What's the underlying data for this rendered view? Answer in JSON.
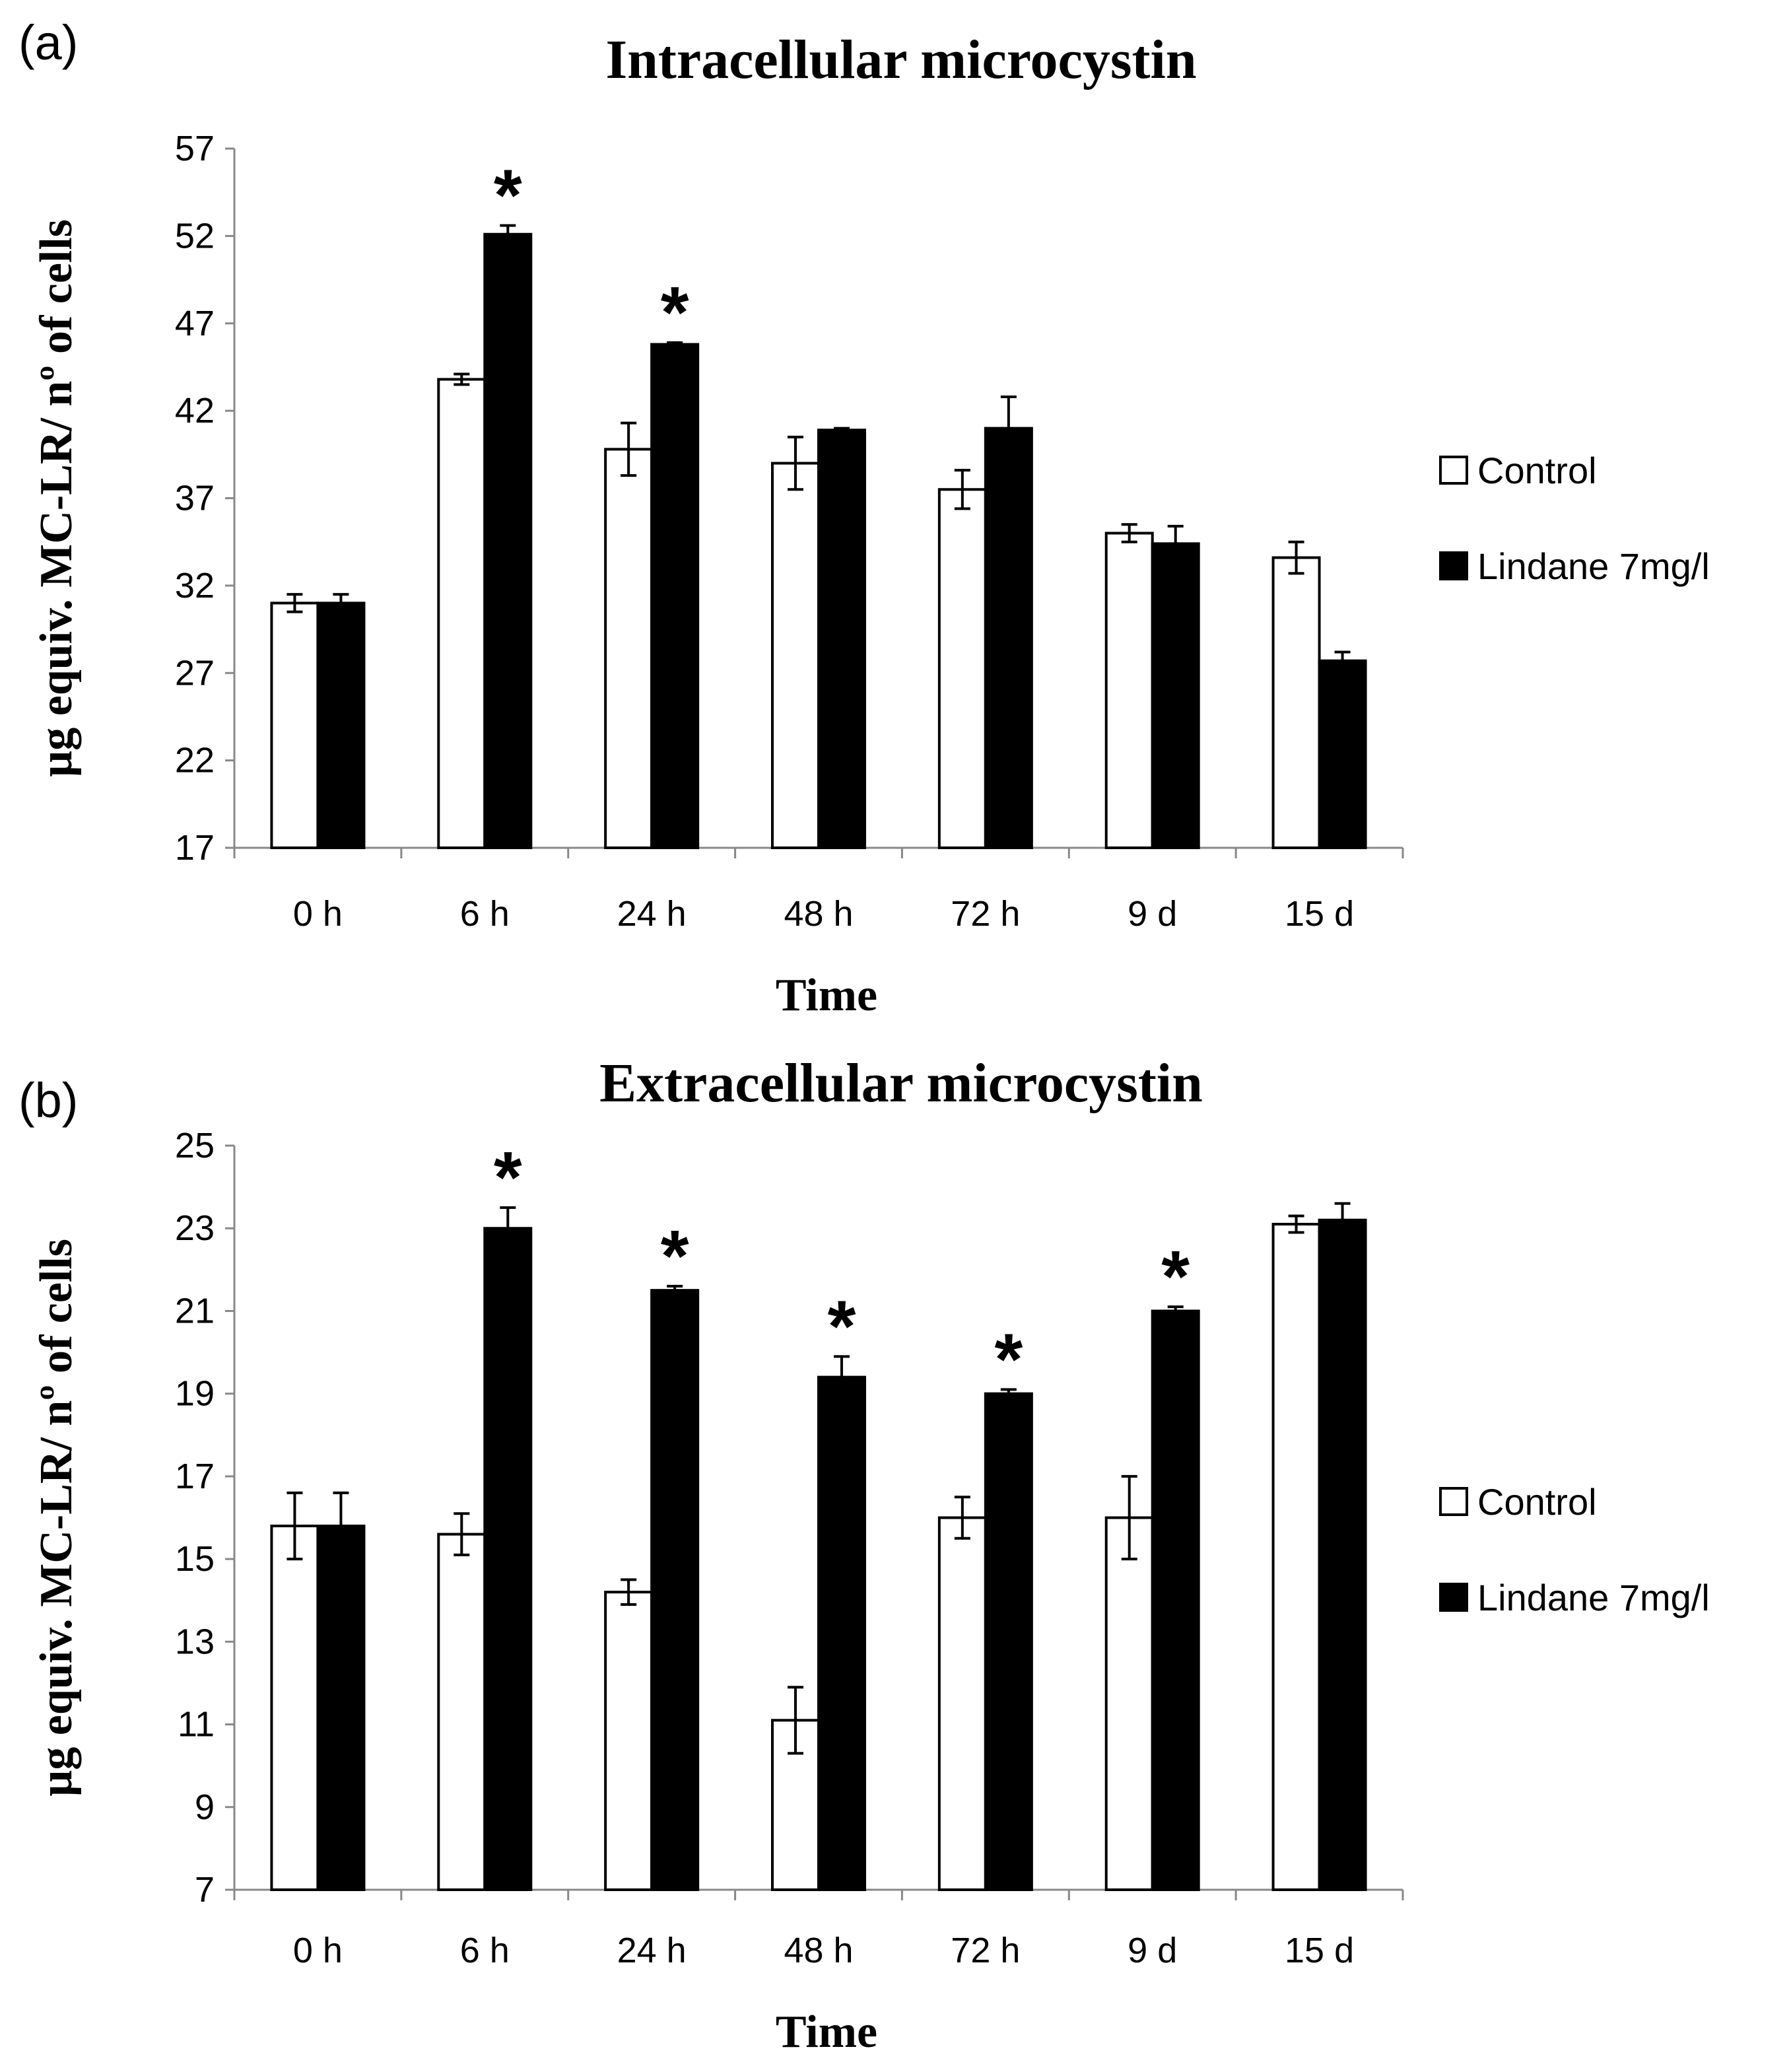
{
  "colors": {
    "control": "#ffffff",
    "lindane": "#000000",
    "outline": "#000000"
  },
  "chart_data": [
    {
      "type": "bar",
      "panel_label": "(a)",
      "title": "Intracellular microcystin",
      "xlabel": "Time",
      "ylabel": "µg equiv. MC-LR/ nº of cells",
      "ylim": [
        17,
        57
      ],
      "yticks": [
        17,
        22,
        27,
        32,
        37,
        42,
        47,
        52,
        57
      ],
      "categories": [
        "0 h",
        "6 h",
        "24 h",
        "48 h",
        "72 h",
        "9 d",
        "15 d"
      ],
      "series": [
        {
          "name": "Control",
          "values": [
            31.0,
            43.8,
            39.8,
            39.0,
            37.5,
            35.0,
            33.6
          ],
          "errors": [
            0.5,
            0.3,
            1.5,
            1.5,
            1.1,
            0.5,
            0.9
          ]
        },
        {
          "name": "Lindane 7mg/l",
          "values": [
            31.0,
            52.1,
            45.8,
            40.9,
            41.0,
            34.4,
            27.7
          ],
          "errors": [
            0.5,
            0.5,
            0.1,
            0.1,
            1.8,
            1.0,
            0.5
          ]
        }
      ],
      "significance": [
        "",
        "*",
        "*",
        "",
        "",
        "",
        ""
      ],
      "legend_position": "right"
    },
    {
      "type": "bar",
      "panel_label": "(b)",
      "title": "Extracellular microcystin",
      "xlabel": "Time",
      "ylabel": "µg equiv. MC-LR/ nº of cells",
      "ylim": [
        7,
        25
      ],
      "yticks": [
        7,
        9,
        11,
        13,
        15,
        17,
        19,
        21,
        23,
        25
      ],
      "categories": [
        "0 h",
        "6 h",
        "24 h",
        "48 h",
        "72 h",
        "9 d",
        "15 d"
      ],
      "series": [
        {
          "name": "Control",
          "values": [
            15.8,
            15.6,
            14.2,
            11.1,
            16.0,
            16.0,
            23.1
          ],
          "errors": [
            0.8,
            0.5,
            0.3,
            0.8,
            0.5,
            1.0,
            0.2
          ]
        },
        {
          "name": "Lindane 7mg/l",
          "values": [
            15.8,
            23.0,
            21.5,
            19.4,
            19.0,
            21.0,
            23.2
          ],
          "errors": [
            0.8,
            0.5,
            0.1,
            0.5,
            0.1,
            0.1,
            0.4
          ]
        }
      ],
      "significance": [
        "",
        "*",
        "*",
        "*",
        "*",
        "*",
        ""
      ],
      "legend_position": "right"
    }
  ]
}
